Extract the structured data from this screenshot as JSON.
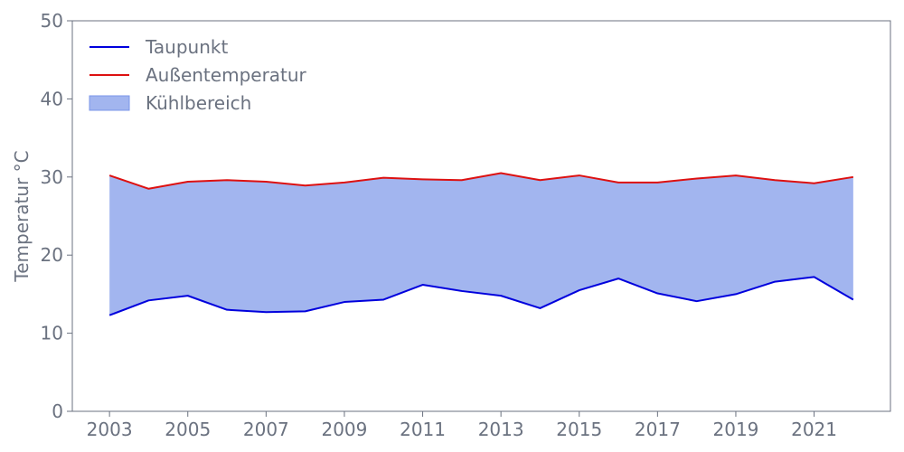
{
  "chart_data": {
    "type": "area",
    "ylabel": "Temperatur °C",
    "xlabel": "",
    "xlim": [
      2002.05,
      2022.95
    ],
    "ylim": [
      0,
      50
    ],
    "x_ticks": [
      2003,
      2005,
      2007,
      2009,
      2011,
      2013,
      2015,
      2017,
      2019,
      2021
    ],
    "y_ticks": [
      0,
      10,
      20,
      30,
      40,
      50
    ],
    "grid": false,
    "legend_position": "top-left",
    "x": [
      2003,
      2004,
      2005,
      2006,
      2007,
      2008,
      2009,
      2010,
      2011,
      2012,
      2013,
      2014,
      2015,
      2016,
      2017,
      2018,
      2019,
      2020,
      2021,
      2022
    ],
    "series": [
      {
        "name": "Taupunkt",
        "color": "#0000dd",
        "values": [
          12.3,
          14.2,
          14.8,
          13.0,
          12.7,
          12.8,
          14.0,
          14.3,
          16.2,
          15.4,
          14.8,
          13.2,
          15.5,
          17.0,
          15.1,
          14.1,
          15.0,
          16.6,
          17.2,
          14.3
        ]
      },
      {
        "name": "Außentemperatur",
        "color": "#dd1111",
        "values": [
          30.2,
          28.5,
          29.4,
          29.6,
          29.4,
          28.9,
          29.3,
          29.9,
          29.7,
          29.6,
          30.5,
          29.6,
          30.2,
          29.3,
          29.3,
          29.8,
          30.2,
          29.6,
          29.2,
          30.0
        ]
      }
    ],
    "fill": {
      "name": "Kühlbereich",
      "color": "#7b96e8",
      "between": [
        "Taupunkt",
        "Außentemperatur"
      ]
    }
  }
}
